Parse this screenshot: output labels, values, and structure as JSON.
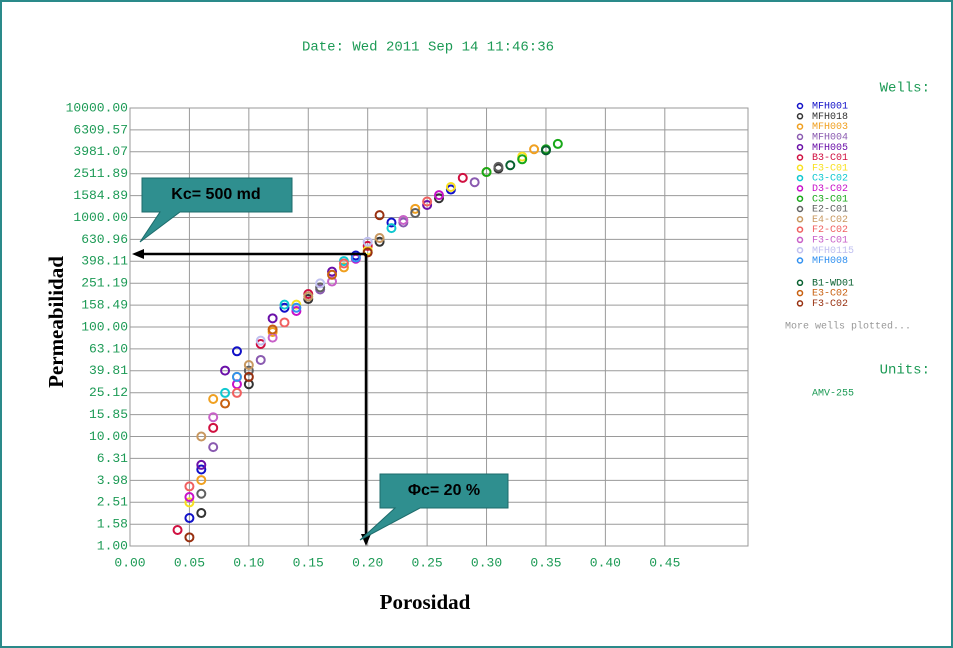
{
  "chart_data": {
    "type": "scatter",
    "title": "Date: Wed 2011 Sep 14 11:46:36",
    "y_label": "Permeabilidad",
    "x_label": "Porosidad",
    "legend_title": "Wells:",
    "legend_note": "More wells plotted...",
    "units_title": "Units:",
    "units": "AMV-255",
    "annotations": [
      "Kc= 500 md",
      "Φc= 20 %"
    ],
    "log_y": true,
    "grid": true,
    "legend_position": "right",
    "xlim": [
      0,
      0.52
    ],
    "ylim": [
      1,
      10000
    ],
    "xticks": [
      {
        "value": 0,
        "label": "0.00"
      },
      {
        "value": 0.05,
        "label": "0.05"
      },
      {
        "value": 0.1,
        "label": "0.10"
      },
      {
        "value": 0.15,
        "label": "0.15"
      },
      {
        "value": 0.2,
        "label": "0.20"
      },
      {
        "value": 0.25,
        "label": "0.25"
      },
      {
        "value": 0.3,
        "label": "0.30"
      },
      {
        "value": 0.35,
        "label": "0.35"
      },
      {
        "value": 0.4,
        "label": "0.40"
      },
      {
        "value": 0.45,
        "label": "0.45"
      }
    ],
    "yticks": [
      {
        "value": 1,
        "label": "1.00"
      },
      {
        "value": 1.58,
        "label": "1.58"
      },
      {
        "value": 2.51,
        "label": "2.51"
      },
      {
        "value": 3.98,
        "label": "3.98"
      },
      {
        "value": 6.31,
        "label": "6.31"
      },
      {
        "value": 10,
        "label": "10.00"
      },
      {
        "value": 15.85,
        "label": "15.85"
      },
      {
        "value": 25.12,
        "label": "25.12"
      },
      {
        "value": 39.81,
        "label": "39.81"
      },
      {
        "value": 63.1,
        "label": "63.10"
      },
      {
        "value": 100,
        "label": "100.00"
      },
      {
        "value": 158.49,
        "label": "158.49"
      },
      {
        "value": 251.19,
        "label": "251.19"
      },
      {
        "value": 398.11,
        "label": "398.11"
      },
      {
        "value": 630.96,
        "label": "630.96"
      },
      {
        "value": 1000,
        "label": "1000.00"
      },
      {
        "value": 1584.89,
        "label": "1584.89"
      },
      {
        "value": 2511.89,
        "label": "2511.89"
      },
      {
        "value": 3981.07,
        "label": "3981.07"
      },
      {
        "value": 6309.57,
        "label": "6309.57"
      },
      {
        "value": 10000,
        "label": "10000.00"
      }
    ],
    "series": [
      {
        "name": "MFH001",
        "color": "#1010c8",
        "x": [
          0.05,
          0.06,
          0.09,
          0.13,
          0.19,
          0.22,
          0.27
        ],
        "values": [
          1.8,
          5,
          60,
          150,
          450,
          900,
          1800
        ]
      },
      {
        "name": "MFH018",
        "color": "#333333",
        "x": [
          0.06,
          0.1,
          0.15,
          0.21,
          0.26,
          0.31
        ],
        "values": [
          2,
          30,
          180,
          600,
          1500,
          2800
        ]
      },
      {
        "name": "MFH003",
        "color": "#f0a020",
        "x": [
          0.06,
          0.07,
          0.12,
          0.18,
          0.24,
          0.3,
          0.34
        ],
        "values": [
          4,
          22,
          90,
          350,
          1200,
          2600,
          4200
        ]
      },
      {
        "name": "MFH004",
        "color": "#8a5ab0",
        "x": [
          0.07,
          0.11,
          0.16,
          0.23,
          0.29
        ],
        "values": [
          8,
          50,
          220,
          900,
          2100
        ]
      },
      {
        "name": "MFH005",
        "color": "#6a10a8",
        "x": [
          0.06,
          0.08,
          0.12,
          0.17,
          0.25
        ],
        "values": [
          5.5,
          40,
          120,
          320,
          1300
        ]
      },
      {
        "name": "B3-C01",
        "color": "#d01040",
        "x": [
          0.04,
          0.07,
          0.11,
          0.15,
          0.2,
          0.28
        ],
        "values": [
          1.4,
          12,
          70,
          200,
          550,
          2300
        ]
      },
      {
        "name": "F3-C01",
        "color": "#f8e020",
        "x": [
          0.05,
          0.09,
          0.14,
          0.2,
          0.27,
          0.33
        ],
        "values": [
          2.5,
          35,
          160,
          500,
          1900,
          3600
        ]
      },
      {
        "name": "C3-C02",
        "color": "#10c8d0",
        "x": [
          0.08,
          0.13,
          0.18,
          0.22
        ],
        "values": [
          25,
          160,
          400,
          800
        ]
      },
      {
        "name": "D3-C02",
        "color": "#c810c8",
        "x": [
          0.05,
          0.09,
          0.14,
          0.19,
          0.26
        ],
        "values": [
          2.8,
          30,
          140,
          420,
          1600
        ]
      },
      {
        "name": "C3-C01",
        "color": "#18a818",
        "x": [
          0.3,
          0.33,
          0.35,
          0.36
        ],
        "values": [
          2600,
          3400,
          4200,
          4700
        ]
      },
      {
        "name": "E2-C01",
        "color": "#606060",
        "x": [
          0.06,
          0.1,
          0.16,
          0.24,
          0.31
        ],
        "values": [
          3,
          40,
          230,
          1100,
          2900
        ]
      },
      {
        "name": "E4-C02",
        "color": "#c89860",
        "x": [
          0.06,
          0.1,
          0.15,
          0.21
        ],
        "values": [
          10,
          45,
          190,
          650
        ]
      },
      {
        "name": "F2-C02",
        "color": "#f06060",
        "x": [
          0.05,
          0.09,
          0.13,
          0.18,
          0.25
        ],
        "values": [
          3.5,
          25,
          110,
          380,
          1400
        ]
      },
      {
        "name": "F3-C01",
        "color": "#c860c8",
        "x": [
          0.07,
          0.12,
          0.17,
          0.23
        ],
        "values": [
          15,
          80,
          260,
          950
        ]
      },
      {
        "name": "MFH0115",
        "color": "#c0c0f0",
        "x": [
          0.11,
          0.16,
          0.2
        ],
        "values": [
          75,
          250,
          600
        ]
      },
      {
        "name": "MFH008",
        "color": "#3090f0",
        "x": [
          0.09,
          0.14,
          0.19
        ],
        "values": [
          35,
          150,
          430
        ]
      },
      {
        "name": "B1-WD01",
        "color": "#086030",
        "x": [
          0.32,
          0.35
        ],
        "values": [
          3000,
          4100
        ]
      },
      {
        "name": "E3-C02",
        "color": "#c86010",
        "x": [
          0.08,
          0.12,
          0.17
        ],
        "values": [
          20,
          95,
          300
        ]
      },
      {
        "name": "F3-C02",
        "color": "#983010",
        "x": [
          0.05,
          0.1,
          0.2,
          0.21
        ],
        "values": [
          1.2,
          35,
          480,
          1050
        ]
      }
    ]
  }
}
